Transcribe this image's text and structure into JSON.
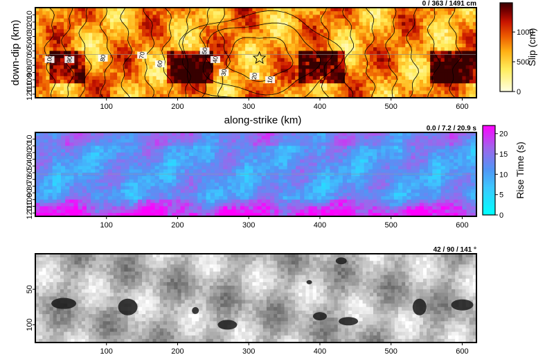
{
  "chart_data": [
    {
      "type": "heatmap",
      "quantity": "slip",
      "stats_label": "0 / 363 / 1491 cm",
      "xlabel": "along-strike (km)",
      "ylabel": "down-dip (km)",
      "xlim": [
        0,
        620
      ],
      "ylim": [
        125,
        0
      ],
      "x_ticks": [
        100,
        200,
        300,
        400,
        500,
        600
      ],
      "y_ticks": [
        10,
        20,
        30,
        40,
        50,
        60,
        70,
        80,
        90,
        100,
        110,
        120
      ],
      "colorbar": {
        "label": "Slip (cm)",
        "min": 0,
        "max": 1491,
        "ticks": [
          0,
          500,
          1000
        ],
        "palette": "hot"
      },
      "hypocenter": {
        "x": 315,
        "y": 70,
        "marker": "star"
      },
      "patches": [
        {
          "x": [
            20,
            65
          ],
          "y": [
            60,
            100
          ],
          "level": "high"
        },
        {
          "x": [
            185,
            245
          ],
          "y": [
            60,
            100
          ],
          "level": "high"
        },
        {
          "x": [
            370,
            430
          ],
          "y": [
            60,
            100
          ],
          "level": "high"
        },
        {
          "x": [
            555,
            615
          ],
          "y": [
            60,
            100
          ],
          "level": "high"
        }
      ],
      "rupture_time_contour_labels": [
        "10",
        "20",
        "30",
        "40",
        "50",
        "60",
        "70",
        "80",
        "90",
        "100"
      ]
    },
    {
      "type": "heatmap",
      "quantity": "rise time",
      "stats_label": "0.0 / 7.2 / 20.9 s",
      "xlim": [
        0,
        620
      ],
      "ylim": [
        125,
        0
      ],
      "x_ticks": [
        100,
        200,
        300,
        400,
        500,
        600
      ],
      "y_ticks": [
        10,
        20,
        30,
        40,
        50,
        60,
        70,
        80,
        90,
        100,
        110,
        120
      ],
      "colorbar": {
        "label": "Rise Time (s)",
        "min": 0,
        "max": 22,
        "ticks": [
          0,
          5,
          10,
          15,
          20
        ],
        "palette": "cyan-blue-magenta"
      }
    },
    {
      "type": "heatmap",
      "quantity": "rake",
      "stats_label": "42 / 90 / 141 °",
      "xlim": [
        0,
        620
      ],
      "ylim": [
        125,
        0
      ],
      "x_ticks": [
        100,
        200,
        300,
        400,
        500,
        600
      ],
      "y_ticks": [
        50,
        100
      ],
      "palette": "gray hatched"
    }
  ],
  "colors": {
    "slip_low": "#ffffe0",
    "slip_mid": "#ff8c00",
    "slip_high": "#3c0000",
    "rise_low": "#00ffff",
    "rise_high": "#ff00ff"
  }
}
